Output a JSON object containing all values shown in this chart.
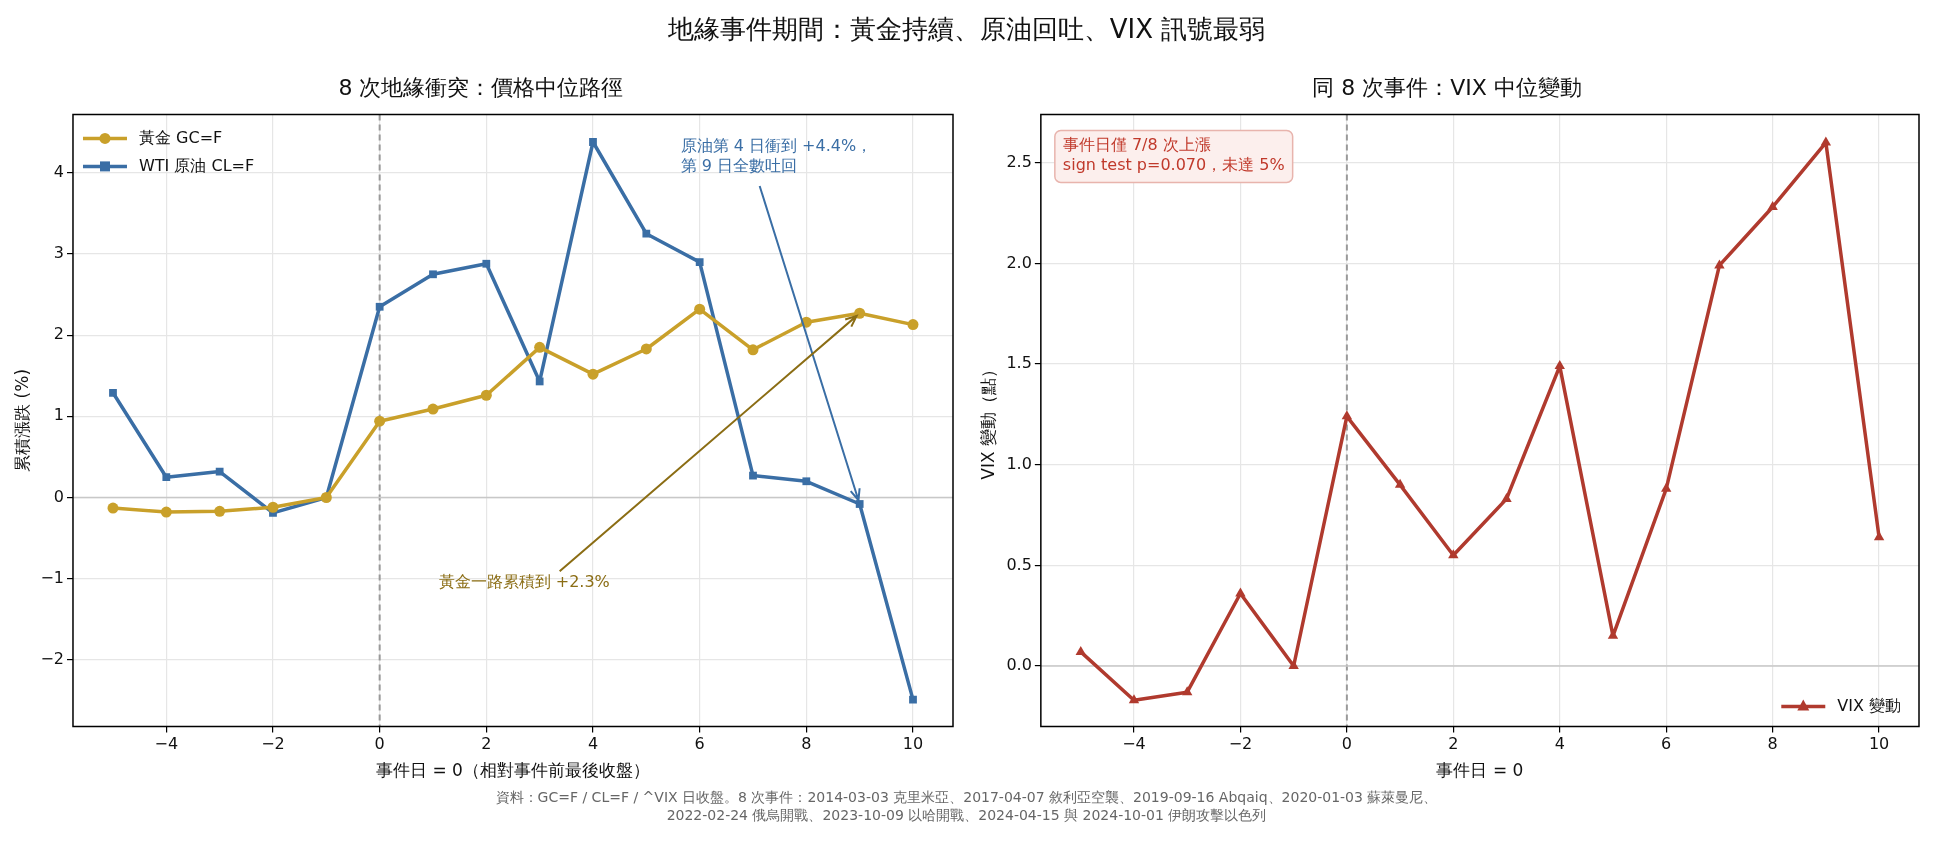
{
  "chart_data": [
    {
      "type": "other",
      "title": "地緣事件期間：黃金持續、原油回吐、VIX 訊號最弱",
      "annotations": [
        "資料：GC=F / CL=F / ^VIX 日收盤。8 次事件：2014-03-03 克里米亞、2017-04-07 敘利亞空襲、2019-09-16 Abqaiq、2020-01-03 蘇萊曼尼、\n2022-02-24 俄烏開戰、2023-10-09 以哈開戰、2024-04-15 與 2024-10-01 伊朗攻擊以色列"
      ]
    },
    {
      "type": "line",
      "title": "8 次地緣衝突：價格中位路徑",
      "xlabel": "事件日 = 0（相對事件前最後收盤）",
      "ylabel": "累積漲跌 (%)",
      "x": [
        -5,
        -4,
        -3,
        -2,
        -1,
        0,
        1,
        2,
        3,
        4,
        5,
        6,
        7,
        8,
        9,
        10
      ],
      "series": [
        {
          "name": "黃金 GC=F",
          "color": "#c9a02a",
          "marker": "circle",
          "values": [
            -0.13,
            -0.18,
            -0.17,
            -0.12,
            0.0,
            0.94,
            1.09,
            1.26,
            1.85,
            1.52,
            1.83,
            2.32,
            1.82,
            2.16,
            2.27,
            2.13
          ]
        },
        {
          "name": "WTI 原油 CL=F",
          "color": "#3a6ea5",
          "marker": "square",
          "values": [
            1.29,
            0.25,
            0.32,
            -0.19,
            0.0,
            2.35,
            2.75,
            2.88,
            1.43,
            4.38,
            3.25,
            2.9,
            0.27,
            0.2,
            -0.08,
            -2.49
          ]
        }
      ],
      "xlim": [
        -5.75,
        10.75
      ],
      "xticks": [
        -4,
        -2,
        0,
        2,
        4,
        6,
        8,
        10
      ],
      "ylim": [
        -2.82,
        4.72
      ],
      "yticks": [
        -2,
        -1,
        0,
        1,
        2,
        3,
        4
      ],
      "ref_lines": [
        {
          "axis": "x",
          "value": 0,
          "color": "#999999",
          "line_style": "dashed"
        },
        {
          "axis": "y",
          "value": 0,
          "color": "#c8c8c8",
          "line_style": "solid"
        }
      ],
      "annotations": [
        {
          "text": "原油第 4 日衝到 +4.4%，第 9 日全數吐回",
          "x": 9,
          "y": -0.08
        },
        {
          "text": "黃金一路累積到 +2.3%",
          "x": 9,
          "y": 2.27
        }
      ],
      "grid": true,
      "legend": "top left",
      "line_style": "solid"
    },
    {
      "type": "line",
      "title": "同 8 次事件：VIX 中位變動",
      "xlabel": "事件日 = 0",
      "ylabel": "VIX 變動（點）",
      "x": [
        -5,
        -4,
        -3,
        -2,
        -1,
        0,
        1,
        2,
        3,
        4,
        5,
        6,
        7,
        8,
        9,
        10
      ],
      "series": [
        {
          "name": "VIX 變動",
          "color": "#b03a2e",
          "marker": "triangle",
          "values": [
            0.07,
            -0.17,
            -0.13,
            0.36,
            0.0,
            1.24,
            0.9,
            0.55,
            0.83,
            1.49,
            0.15,
            0.88,
            1.99,
            2.28,
            2.6,
            0.64
          ]
        }
      ],
      "xlim": [
        -5.75,
        10.75
      ],
      "xticks": [
        -4,
        -2,
        0,
        2,
        4,
        6,
        8,
        10
      ],
      "ylim": [
        -0.3,
        2.74
      ],
      "yticks": [
        {
          "value": 0,
          "label": "0.0"
        },
        0.5,
        {
          "value": 1,
          "label": "1.0"
        },
        1.5,
        {
          "value": 2,
          "label": "2.0"
        },
        2.5
      ],
      "ref_lines": [
        {
          "axis": "x",
          "value": 0,
          "color": "#999999",
          "line_style": "dashed"
        },
        {
          "axis": "y",
          "value": 0,
          "color": "#c8c8c8",
          "line_style": "solid"
        }
      ],
      "annotations": [
        "事件日僅 7/8 次上漲\nsign test p=0.070，未達 5%"
      ],
      "grid": true,
      "legend": "bottom right",
      "line_style": "solid"
    }
  ]
}
